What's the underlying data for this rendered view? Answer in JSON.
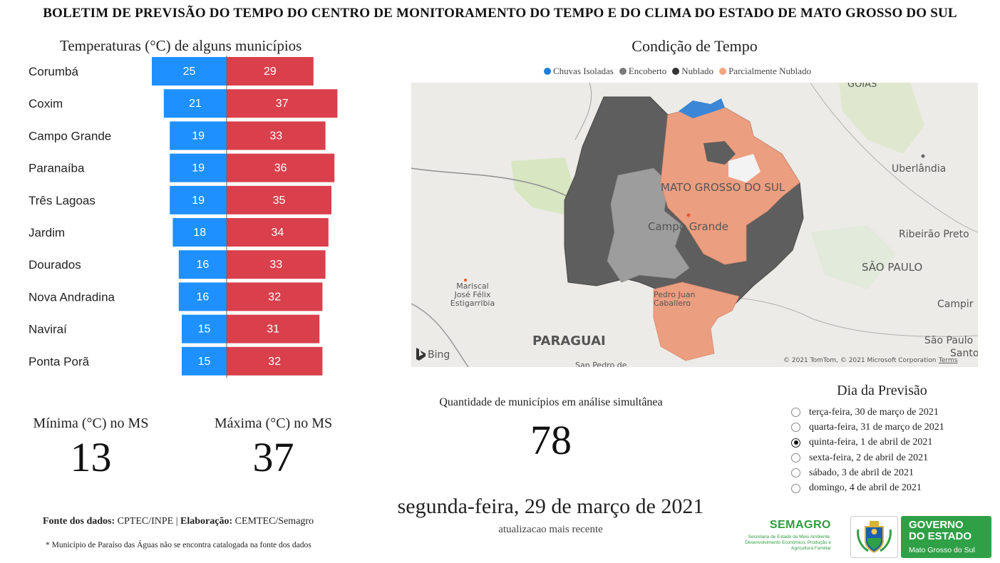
{
  "header": {
    "title": "BOLETIM DE PREVISÃO DO TEMPO DO CENTRO DE MONITORAMENTO DO TEMPO E DO CLIMA DO ESTADO DE MATO GROSSO DO SUL"
  },
  "temperatures": {
    "title": "Temperaturas (°C) de alguns municípios",
    "colors": {
      "min": "#1e90ff",
      "max": "#d9404c"
    },
    "chart_data": {
      "type": "bar",
      "orientation": "horizontal-diverging",
      "categories": [
        "Corumbá",
        "Coxim",
        "Campo Grande",
        "Paranaíba",
        "Três Lagoas",
        "Jardim",
        "Dourados",
        "Nova Andradina",
        "Naviraí",
        "Ponta Porã"
      ],
      "series": [
        {
          "values": [
            25,
            21,
            19,
            19,
            19,
            18,
            16,
            16,
            15,
            15
          ]
        },
        {
          "values": [
            29,
            37,
            33,
            36,
            35,
            34,
            33,
            32,
            31,
            32
          ]
        }
      ]
    }
  },
  "stats": {
    "min_label": "Mínima (°C) no MS",
    "min_value": "13",
    "max_label": "Máxima (°C) no MS",
    "max_value": "37"
  },
  "footer": {
    "fonte_label": "Fonte dos dados:",
    "fonte_value": "CPTEC/INPE",
    "separator": "|",
    "elab_label": "Elaboração:",
    "elab_value": "CEMTEC/Semagro",
    "note": "* Município de Paraíso das Águas não se encontra catalogada na fonte dos dados"
  },
  "map_panel": {
    "title": "Condição de Tempo",
    "legend": [
      {
        "label": "Chuvas Isoladas",
        "color": "#1e7fd6"
      },
      {
        "label": "Encoberto",
        "color": "#7a7a7a"
      },
      {
        "label": "Nublado",
        "color": "#333333"
      },
      {
        "label": "Parcialmente Nublado",
        "color": "#f4a582"
      }
    ],
    "region_colors": {
      "nublado": "#5e5e5e",
      "encoberto": "#9d9d9d",
      "parcial": "#ec9e80",
      "chuvas": "#3b86d6"
    },
    "labels": {
      "state": "MATO GROSSO DO SUL",
      "capital": "Campo Grande",
      "country": "PARAGUAI",
      "goias": "GOIÁS",
      "uberlandia": "Uberlândia",
      "ribeirao": "Ribeirão Preto",
      "saopaulo_state": "SÃO PAULO",
      "campinas": "Campir",
      "saopaulo_city": "São Paulo",
      "santos": "Santo",
      "mariscal1": "Mariscal",
      "mariscal2": "José Félix",
      "mariscal3": "Estigarribia",
      "pedro": "Pedro Juan",
      "caballero": "Caballero",
      "sanpedro": "San Pedro de",
      "bing": "Bing",
      "copyright": "© 2021 TomTom, © 2021 Microsoft Corporation",
      "terms": "Terms"
    }
  },
  "analysis": {
    "label": "Quantidade de municípios em análise simultânea",
    "value": "78"
  },
  "update": {
    "date": "segunda-feira, 29 de março de 2021",
    "sub": "atualizacao mais recente"
  },
  "forecast_day": {
    "title": "Dia da Previsão",
    "options": [
      {
        "label": "terça-feira, 30 de março de 2021",
        "selected": false
      },
      {
        "label": "quarta-feira, 31 de março de 2021",
        "selected": false
      },
      {
        "label": "quinta-feira, 1 de abril de 2021",
        "selected": true
      },
      {
        "label": "sexta-feira, 2 de abril de 2021",
        "selected": false
      },
      {
        "label": "sábado, 3 de abril de 2021",
        "selected": false
      },
      {
        "label": "domingo, 4 de abril de 2021",
        "selected": false
      }
    ]
  },
  "logos": {
    "semagro_name": "SEMAGRO",
    "semagro_sub": "Secretaria de Estado de Meio Ambiente, Desenvolvimento Econômico, Produção e Agricultura Familiar",
    "gov_line1": "GOVERNO",
    "gov_line2": "DO ESTADO",
    "gov_line3": "Mato Grosso do Sul"
  }
}
